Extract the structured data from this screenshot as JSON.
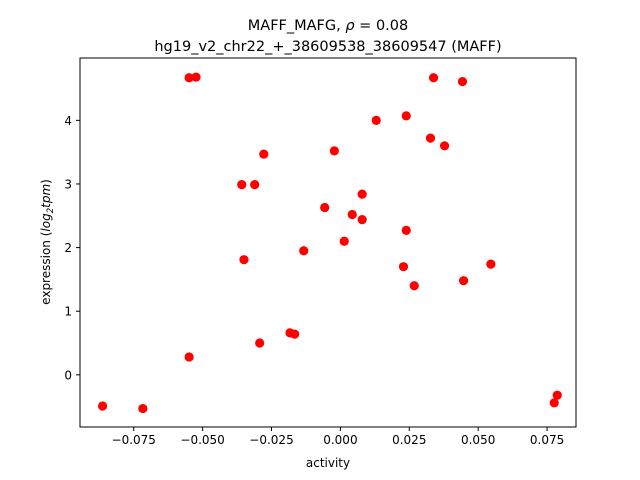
{
  "chart_data": {
    "type": "scatter",
    "title_line1_prefix": "MAFF_MAFG, ",
    "title_rho_symbol": "ρ",
    "title_rho_value": " = 0.08",
    "title_line2": "hg19_v2_chr22_+_38609538_38609547 (MAFF)",
    "xlabel": "activity",
    "ylabel_prefix": "expression (",
    "ylabel_log": "log",
    "ylabel_sub": "2",
    "ylabel_tpm": "tpm",
    "ylabel_suffix": ")",
    "xlim": [
      -0.0945,
      0.0855
    ],
    "ylim": [
      -0.82,
      4.98
    ],
    "xticks": [
      -0.075,
      -0.05,
      -0.025,
      0.0,
      0.025,
      0.05,
      0.075
    ],
    "xtick_labels": [
      "−0.075",
      "−0.050",
      "−0.025",
      "0.000",
      "0.025",
      "0.050",
      "0.075"
    ],
    "yticks": [
      0,
      1,
      2,
      3,
      4
    ],
    "ytick_labels": [
      "0",
      "1",
      "2",
      "3",
      "4"
    ],
    "marker_color": "#ff0000",
    "points": [
      {
        "x": -0.0863,
        "y": -0.49
      },
      {
        "x": -0.0717,
        "y": -0.53
      },
      {
        "x": -0.0549,
        "y": 4.67
      },
      {
        "x": -0.0524,
        "y": 4.68
      },
      {
        "x": -0.0549,
        "y": 0.28
      },
      {
        "x": -0.0358,
        "y": 2.99
      },
      {
        "x": -0.035,
        "y": 1.81
      },
      {
        "x": -0.0311,
        "y": 2.99
      },
      {
        "x": -0.0293,
        "y": 0.5
      },
      {
        "x": -0.0278,
        "y": 3.47
      },
      {
        "x": -0.0183,
        "y": 0.66
      },
      {
        "x": -0.0166,
        "y": 0.64
      },
      {
        "x": -0.0133,
        "y": 1.95
      },
      {
        "x": -0.0057,
        "y": 2.63
      },
      {
        "x": -0.0022,
        "y": 3.52
      },
      {
        "x": 0.0014,
        "y": 2.1
      },
      {
        "x": 0.0043,
        "y": 2.52
      },
      {
        "x": 0.0079,
        "y": 2.44
      },
      {
        "x": 0.0079,
        "y": 2.84
      },
      {
        "x": 0.013,
        "y": 4.0
      },
      {
        "x": 0.0229,
        "y": 1.7
      },
      {
        "x": 0.0239,
        "y": 2.27
      },
      {
        "x": 0.0239,
        "y": 4.07
      },
      {
        "x": 0.0268,
        "y": 1.4
      },
      {
        "x": 0.0327,
        "y": 3.72
      },
      {
        "x": 0.0338,
        "y": 4.67
      },
      {
        "x": 0.0378,
        "y": 3.6
      },
      {
        "x": 0.0443,
        "y": 4.61
      },
      {
        "x": 0.0447,
        "y": 1.48
      },
      {
        "x": 0.0546,
        "y": 1.74
      },
      {
        "x": 0.0776,
        "y": -0.44
      },
      {
        "x": 0.0787,
        "y": -0.32
      }
    ]
  }
}
